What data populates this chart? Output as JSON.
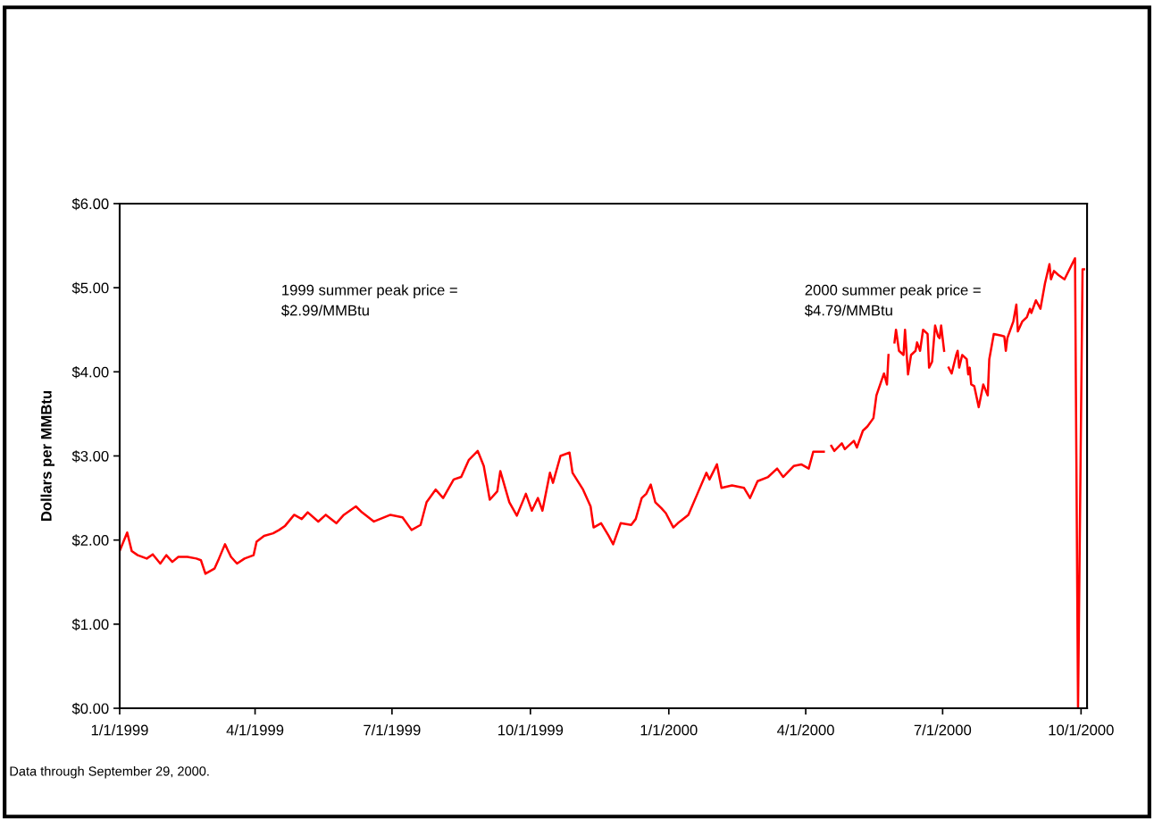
{
  "chart_data": {
    "type": "line",
    "ylabel": "Dollars per MMBtu",
    "annotations": [
      "1999 summer peak price =\n$2.99/MMBtu",
      "2000 summer peak price =\n$4.79/MMBtu",
      "Data through September 29, 2000."
    ],
    "x": [
      "1999-01-01",
      "1999-01-06",
      "1999-01-09",
      "1999-01-13",
      "1999-01-19",
      "1999-01-23",
      "1999-01-28",
      "1999-02-01",
      "1999-02-05",
      "1999-02-09",
      "1999-02-15",
      "1999-02-21",
      "1999-02-24",
      "1999-02-27",
      "1999-03-05",
      "1999-03-08",
      "1999-03-12",
      "1999-03-16",
      "1999-03-20",
      "1999-03-25",
      "1999-03-31",
      "1999-04-02",
      "1999-04-07",
      "1999-04-13",
      "1999-04-17",
      "1999-04-21",
      "1999-04-27",
      "1999-05-02",
      "1999-05-06",
      "1999-05-13",
      "1999-05-18",
      "1999-05-25",
      "1999-05-30",
      "1999-06-07",
      "1999-06-11",
      "1999-06-19",
      "1999-06-30",
      "1999-07-08",
      "1999-07-14",
      "1999-07-20",
      "1999-07-24",
      "1999-07-30",
      "1999-08-04",
      "1999-08-11",
      "1999-08-16",
      "1999-08-21",
      "1999-08-27",
      "1999-08-31",
      "1999-09-04",
      "1999-09-09",
      "1999-09-11",
      "1999-09-17",
      "1999-09-22",
      "1999-09-28",
      "1999-10-02",
      "1999-10-06",
      "1999-10-09",
      "1999-10-14",
      "1999-10-16",
      "1999-10-21",
      "1999-10-27",
      "1999-10-29",
      "1999-11-05",
      "1999-11-10",
      "1999-11-12",
      "1999-11-17",
      "1999-11-22",
      "1999-11-25",
      "1999-11-30",
      "1999-12-07",
      "1999-12-10",
      "1999-12-14",
      "1999-12-17",
      "1999-12-20",
      "1999-12-23",
      "1999-12-27",
      "1999-12-30",
      "2000-01-04",
      "2000-01-07",
      "2000-01-14",
      "2000-01-20",
      "2000-01-26",
      "2000-01-28",
      "2000-02-02",
      "2000-02-05",
      "2000-02-12",
      "2000-02-20",
      "2000-02-24",
      "2000-02-29",
      "2000-03-07",
      "2000-03-13",
      "2000-03-17",
      "2000-03-24",
      "2000-03-29",
      "2000-04-03",
      "2000-04-06",
      "2000-04-13",
      "2000-04-17",
      "2000-04-18",
      "2000-04-20",
      "2000-04-25",
      "2000-04-27",
      "2000-05-03",
      "2000-05-05",
      "2000-05-09",
      "2000-05-12",
      "2000-05-16",
      "2000-05-18",
      "2000-05-23",
      "2000-05-25",
      "2000-05-26",
      "2000-05-29",
      "2000-05-30",
      "2000-05-31",
      "2000-06-02",
      "2000-06-05",
      "2000-06-06",
      "2000-06-08",
      "2000-06-10",
      "2000-06-13",
      "2000-06-14",
      "2000-06-16",
      "2000-06-18",
      "2000-06-21",
      "2000-06-22",
      "2000-06-24",
      "2000-06-26",
      "2000-06-28",
      "2000-06-29",
      "2000-06-30",
      "2000-07-02",
      "2000-07-04",
      "2000-07-05",
      "2000-07-07",
      "2000-07-10",
      "2000-07-11",
      "2000-07-12",
      "2000-07-14",
      "2000-07-17",
      "2000-07-18",
      "2000-07-19",
      "2000-07-20",
      "2000-07-22",
      "2000-07-25",
      "2000-07-28",
      "2000-07-31",
      "2000-08-01",
      "2000-08-04",
      "2000-08-09",
      "2000-08-11",
      "2000-08-12",
      "2000-08-13",
      "2000-08-17",
      "2000-08-19",
      "2000-08-20",
      "2000-08-23",
      "2000-08-26",
      "2000-08-28",
      "2000-08-29",
      "2000-09-01",
      "2000-09-04",
      "2000-09-07",
      "2000-09-10",
      "2000-09-11",
      "2000-09-13",
      "2000-09-16",
      "2000-09-20",
      "2000-09-27",
      "2000-09-29",
      "2000-10-02",
      "2000-10-03"
    ],
    "series": [
      {
        "color": "#ff0000",
        "values": [
          1.87,
          2.09,
          1.87,
          1.82,
          1.78,
          1.83,
          1.72,
          1.82,
          1.74,
          1.8,
          1.8,
          1.78,
          1.76,
          1.6,
          1.66,
          1.78,
          1.95,
          1.8,
          1.72,
          1.78,
          1.82,
          1.98,
          2.05,
          2.08,
          2.12,
          2.17,
          2.3,
          2.25,
          2.33,
          2.22,
          2.3,
          2.2,
          2.3,
          2.4,
          2.33,
          2.22,
          2.3,
          2.27,
          2.12,
          2.18,
          2.45,
          2.6,
          2.5,
          2.72,
          2.75,
          2.95,
          3.06,
          2.88,
          2.48,
          2.58,
          2.82,
          2.45,
          2.29,
          2.55,
          2.35,
          2.5,
          2.35,
          2.8,
          2.68,
          3.0,
          3.04,
          2.8,
          2.6,
          2.4,
          2.15,
          2.2,
          2.05,
          1.95,
          2.2,
          2.18,
          2.25,
          2.5,
          2.55,
          2.66,
          2.45,
          2.38,
          2.32,
          2.15,
          2.2,
          2.3,
          2.55,
          2.8,
          2.72,
          2.9,
          2.62,
          2.65,
          2.62,
          2.5,
          2.7,
          2.75,
          2.85,
          2.75,
          2.88,
          2.9,
          2.85,
          3.05,
          3.05,
          null,
          3.12,
          3.06,
          3.15,
          3.08,
          3.18,
          3.1,
          3.3,
          3.35,
          3.45,
          3.72,
          3.98,
          3.85,
          4.2,
          null,
          4.35,
          4.5,
          4.25,
          4.2,
          4.5,
          3.97,
          4.2,
          4.25,
          4.35,
          4.25,
          4.5,
          4.45,
          4.05,
          4.12,
          4.55,
          4.42,
          4.4,
          4.55,
          4.25,
          null,
          4.05,
          3.98,
          4.2,
          4.25,
          4.05,
          4.2,
          4.15,
          3.97,
          4.05,
          3.85,
          3.83,
          3.58,
          3.85,
          3.72,
          4.15,
          4.45,
          4.43,
          4.42,
          4.25,
          4.4,
          4.6,
          4.8,
          4.48,
          4.6,
          4.65,
          4.75,
          4.7,
          4.85,
          4.75,
          5.05,
          5.28,
          5.1,
          5.2,
          5.15,
          5.1,
          5.35,
          0.0,
          5.22,
          5.22
        ]
      }
    ],
    "xlim": [
      "1999-01-01",
      "2000-10-05"
    ],
    "xticks": [
      {
        "value": "1999-01-01",
        "label": "1/1/1999"
      },
      {
        "value": "1999-04-01",
        "label": "4/1/1999"
      },
      {
        "value": "1999-07-01",
        "label": "7/1/1999"
      },
      {
        "value": "1999-10-01",
        "label": "10/1/1999"
      },
      {
        "value": "2000-01-01",
        "label": "1/1/2000"
      },
      {
        "value": "2000-04-01",
        "label": "4/1/2000"
      },
      {
        "value": "2000-07-01",
        "label": "7/1/2000"
      },
      {
        "value": "2000-10-01",
        "label": "10/1/2000"
      }
    ],
    "ylim": [
      0,
      6
    ],
    "yticks": [
      {
        "value": 0,
        "label": "$0.00"
      },
      {
        "value": 1,
        "label": "$1.00"
      },
      {
        "value": 2,
        "label": "$2.00"
      },
      {
        "value": 3,
        "label": "$3.00"
      },
      {
        "value": 4,
        "label": "$4.00"
      },
      {
        "value": 5,
        "label": "$5.00"
      },
      {
        "value": 6,
        "label": "$6.00"
      }
    ],
    "marker": "none",
    "line_style": "solid"
  }
}
